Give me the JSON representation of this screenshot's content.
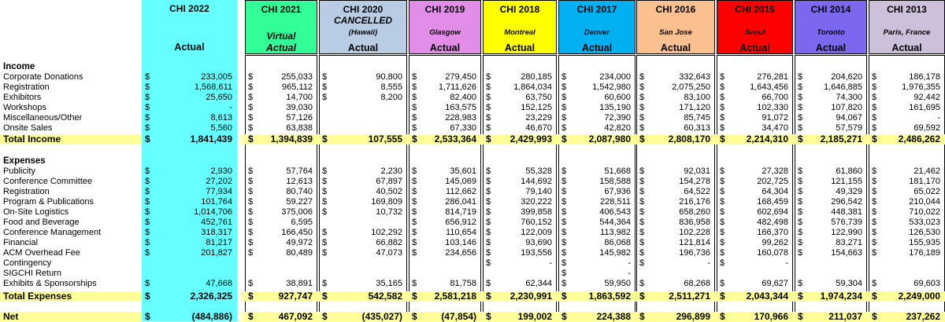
{
  "sections": {
    "income": "Income",
    "expenses": "Expenses"
  },
  "columns": [
    {
      "year": "CHI 2022",
      "cancelled": "",
      "location": "",
      "actual": "Actual",
      "color": "#66ffff",
      "framed": false
    },
    {
      "year": "CHI 2021",
      "cancelled": "",
      "location": "Virtual",
      "actual": "Actual",
      "color": "#33ff99",
      "framed": true
    },
    {
      "year": "CHI 2020",
      "cancelled": "CANCELLED",
      "location": "(Hawaii)",
      "actual": "Actual",
      "color": "#b8cce4",
      "framed": true
    },
    {
      "year": "CHI 2019",
      "cancelled": "",
      "location": "Glasgow",
      "actual": "Actual",
      "color": "#e28ee8",
      "framed": true
    },
    {
      "year": "CHI 2018",
      "cancelled": "",
      "location": "Montreal",
      "actual": "Actual",
      "color": "#ffff00",
      "framed": true
    },
    {
      "year": "CHI 2017",
      "cancelled": "",
      "location": "Denver",
      "actual": "Actual",
      "color": "#00b0f0",
      "framed": true
    },
    {
      "year": "CHI 2016",
      "cancelled": "",
      "location": "San Jose",
      "actual": "Actual",
      "color": "#fac090",
      "framed": true
    },
    {
      "year": "CHI 2015",
      "cancelled": "",
      "location": "Seoul",
      "actual": "Actual",
      "color": "#ff0000",
      "framed": true
    },
    {
      "year": "CHI 2014",
      "cancelled": "",
      "location": "Toronto",
      "actual": "Actual",
      "color": "#7b68ee",
      "framed": true
    },
    {
      "year": "CHI 2013",
      "cancelled": "",
      "location": "Paris, France",
      "actual": "Actual",
      "color": "#ccc0da",
      "framed": true
    }
  ],
  "income_rows": [
    {
      "label": "Corporate Donations",
      "values": [
        "233,005",
        "255,033",
        "90,800",
        "279,450",
        "280,185",
        "234,000",
        "332,643",
        "276,281",
        "204,620",
        "186,178"
      ]
    },
    {
      "label": "Registration",
      "values": [
        "1,568,611",
        "965,112",
        "8,555",
        "1,711,626",
        "1,864,034",
        "1,542,980",
        "2,075,250",
        "1,643,456",
        "1,646,885",
        "1,976,355"
      ]
    },
    {
      "label": "Exhibitors",
      "values": [
        "25,650",
        "14,700",
        "8,200",
        "82,400",
        "63,750",
        "60,600",
        "83,100",
        "66,700",
        "74,300",
        "92,442"
      ]
    },
    {
      "label": "Workshops",
      "values": [
        "-",
        "39,030",
        "",
        "163,575",
        "152,125",
        "135,190",
        "171,120",
        "102,330",
        "107,820",
        "161,695"
      ]
    },
    {
      "label": "Miscellaneous/Other",
      "values": [
        "8,613",
        "57,126",
        "",
        "228,983",
        "23,229",
        "72,390",
        "85,745",
        "91,072",
        "94,067",
        "-"
      ]
    },
    {
      "label": "Onsite Sales",
      "values": [
        "5,560",
        "63,838",
        "",
        "67,330",
        "46,670",
        "42,820",
        "60,313",
        "34,470",
        "57,579",
        "69,592"
      ]
    }
  ],
  "total_income": {
    "label": "Total Income",
    "values": [
      "1,841,439",
      "1,394,839",
      "107,555",
      "2,533,364",
      "2,429,993",
      "2,087,980",
      "2,808,170",
      "2,214,310",
      "2,185,271",
      "2,486,262"
    ]
  },
  "expense_rows": [
    {
      "label": "Publicity",
      "values": [
        "2,930",
        "57,764",
        "2,230",
        "35,601",
        "55,328",
        "51,668",
        "92,031",
        "27,328",
        "61,860",
        "21,462"
      ]
    },
    {
      "label": "Conference Committee",
      "values": [
        "27,202",
        "12,613",
        "67,897",
        "145,069",
        "144,692",
        "158,588",
        "154,278",
        "202,725",
        "121,155",
        "181,170"
      ]
    },
    {
      "label": "Registration",
      "values": [
        "77,934",
        "80,740",
        "40,502",
        "112,662",
        "79,140",
        "67,936",
        "64,522",
        "64,304",
        "49,329",
        "65,022"
      ]
    },
    {
      "label": "Program & Publications",
      "values": [
        "101,764",
        "59,227",
        "169,809",
        "286,041",
        "320,222",
        "228,511",
        "216,176",
        "168,459",
        "296,542",
        "210,044"
      ]
    },
    {
      "label": "On-Site Logistics",
      "values": [
        "1,014,706",
        "375,006",
        "10,732",
        "814,719",
        "399,858",
        "406,543",
        "658,260",
        "602,694",
        "448,381",
        "710,022"
      ]
    },
    {
      "label": "Food and Beverage",
      "values": [
        "452,761",
        "6,595",
        "",
        "656,912",
        "760,152",
        "544,364",
        "836,958",
        "482,498",
        "576,739",
        "533,023"
      ]
    },
    {
      "label": "Conference Management",
      "values": [
        "318,317",
        "166,450",
        "102,292",
        "110,654",
        "122,009",
        "113,982",
        "102,228",
        "166,370",
        "122,990",
        "126,530"
      ]
    },
    {
      "label": "Financial",
      "values": [
        "81,217",
        "49,972",
        "66,882",
        "103,146",
        "93,690",
        "86,068",
        "121,814",
        "99,262",
        "83,271",
        "155,935"
      ]
    },
    {
      "label": "ACM Overhead Fee",
      "values": [
        "201,827",
        "80,489",
        "47,073",
        "234,656",
        "193,556",
        "145,982",
        "196,736",
        "160,078",
        "154,663",
        "176,189"
      ]
    },
    {
      "label": "Contingency",
      "values": [
        "",
        "",
        "",
        "",
        "-",
        "-",
        "-",
        "-",
        "",
        ""
      ]
    },
    {
      "label": "SIGCHI Return",
      "values": [
        "",
        "",
        "",
        "",
        "",
        "-",
        "",
        "",
        "",
        ""
      ]
    },
    {
      "label": "Exhibits & Sponsorships",
      "values": [
        "47,668",
        "38,891",
        "35,165",
        "81,758",
        "62,344",
        "59,950",
        "68,268",
        "69,627",
        "59,304",
        "69,603"
      ]
    }
  ],
  "total_expenses": {
    "label": "Total Expenses",
    "values": [
      "2,326,325",
      "927,747",
      "542,582",
      "2,581,218",
      "2,230,991",
      "1,863,592",
      "2,511,271",
      "2,043,344",
      "1,974,234",
      "2,249,000"
    ]
  },
  "net": {
    "label": "Net",
    "values": [
      "(484,886)",
      "467,092",
      "(435,027)",
      "(47,854)",
      "199,002",
      "224,388",
      "296,899",
      "170,966",
      "211,037",
      "237,262"
    ]
  },
  "currency_symbol": "$"
}
